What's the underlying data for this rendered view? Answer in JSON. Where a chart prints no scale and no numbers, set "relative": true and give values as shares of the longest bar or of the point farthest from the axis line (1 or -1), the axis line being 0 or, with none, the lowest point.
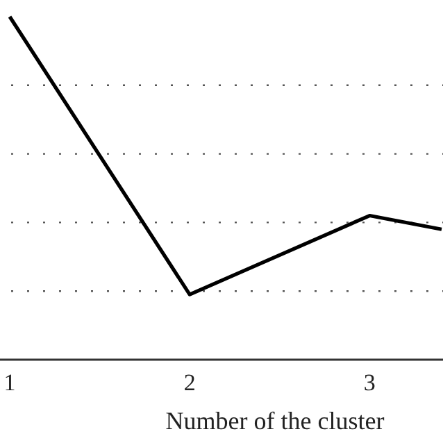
{
  "chart_data": {
    "type": "line",
    "xlabel": "Number of the cluster",
    "x": [
      1,
      2,
      3,
      3.4
    ],
    "values": [
      1,
      0.19,
      0.42,
      0.38
    ],
    "relative": true,
    "color": "#000000",
    "xlim": [
      1,
      3.4
    ],
    "xticks": [
      1,
      2,
      3
    ],
    "grid": "y",
    "marker": "none",
    "line_style": "solid"
  }
}
